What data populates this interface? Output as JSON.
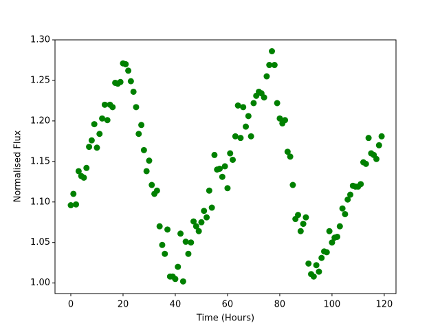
{
  "chart_data": {
    "type": "scatter",
    "x_label": "Time (Hours)",
    "y_label": "Normalised Flux",
    "color": "#008000",
    "x": [
      0,
      1,
      2,
      3,
      4,
      5,
      6,
      7,
      8,
      9,
      10,
      11,
      12,
      13,
      14,
      15,
      16,
      17,
      18,
      19,
      20,
      21,
      22,
      23,
      24,
      25,
      26,
      27,
      28,
      29,
      30,
      31,
      32,
      33,
      34,
      35,
      36,
      37,
      38,
      39,
      40,
      41,
      42,
      43,
      44,
      45,
      46,
      47,
      48,
      49,
      50,
      51,
      52,
      53,
      54,
      55,
      56,
      57,
      58,
      59,
      60,
      61,
      62,
      63,
      64,
      65,
      66,
      67,
      68,
      69,
      70,
      71,
      72,
      73,
      74,
      75,
      76,
      77,
      78,
      79,
      80,
      81,
      82,
      83,
      84,
      85,
      86,
      87,
      88,
      89,
      90,
      91,
      92,
      93,
      94,
      95,
      96,
      97,
      98,
      99,
      100,
      101,
      102,
      103,
      104,
      105,
      106,
      107,
      108,
      109,
      110,
      111,
      112,
      113,
      114,
      115,
      116,
      117,
      118,
      119
    ],
    "values": [
      1.096,
      1.11,
      1.097,
      1.138,
      1.132,
      1.13,
      1.142,
      1.168,
      1.176,
      1.196,
      1.167,
      1.184,
      1.203,
      1.22,
      1.201,
      1.22,
      1.217,
      1.247,
      1.246,
      1.248,
      1.271,
      1.27,
      1.262,
      1.249,
      1.236,
      1.217,
      1.184,
      1.195,
      1.164,
      1.138,
      1.151,
      1.121,
      1.11,
      1.114,
      1.07,
      1.047,
      1.036,
      1.066,
      1.008,
      1.008,
      1.005,
      1.02,
      1.061,
      1.002,
      1.051,
      1.036,
      1.05,
      1.076,
      1.07,
      1.064,
      1.075,
      1.089,
      1.081,
      1.114,
      1.093,
      1.158,
      1.14,
      1.141,
      1.131,
      1.144,
      1.117,
      1.16,
      1.152,
      1.181,
      1.219,
      1.179,
      1.217,
      1.193,
      1.206,
      1.181,
      1.222,
      1.231,
      1.236,
      1.234,
      1.229,
      1.255,
      1.269,
      1.286,
      1.269,
      1.222,
      1.203,
      1.197,
      1.201,
      1.162,
      1.156,
      1.121,
      1.079,
      1.084,
      1.064,
      1.073,
      1.081,
      1.024,
      1.011,
      1.008,
      1.022,
      1.014,
      1.031,
      1.039,
      1.038,
      1.064,
      1.05,
      1.056,
      1.057,
      1.07,
      1.092,
      1.085,
      1.103,
      1.109,
      1.12,
      1.119,
      1.119,
      1.122,
      1.149,
      1.147,
      1.179,
      1.16,
      1.158,
      1.153,
      1.17,
      1.181
    ],
    "xlim": [
      -6.05,
      124.5
    ],
    "ylim": [
      0.987,
      1.3
    ],
    "xticks": [
      0,
      20,
      40,
      60,
      80,
      100,
      120
    ],
    "yticks": [
      {
        "value": 1.0,
        "label": "1.00"
      },
      {
        "value": 1.05,
        "label": "1.05"
      },
      {
        "value": 1.1,
        "label": "1.10"
      },
      {
        "value": 1.15,
        "label": "1.15"
      },
      {
        "value": 1.2,
        "label": "1.20"
      },
      {
        "value": 1.25,
        "label": "1.25"
      },
      {
        "value": 1.3,
        "label": "1.30"
      }
    ]
  }
}
